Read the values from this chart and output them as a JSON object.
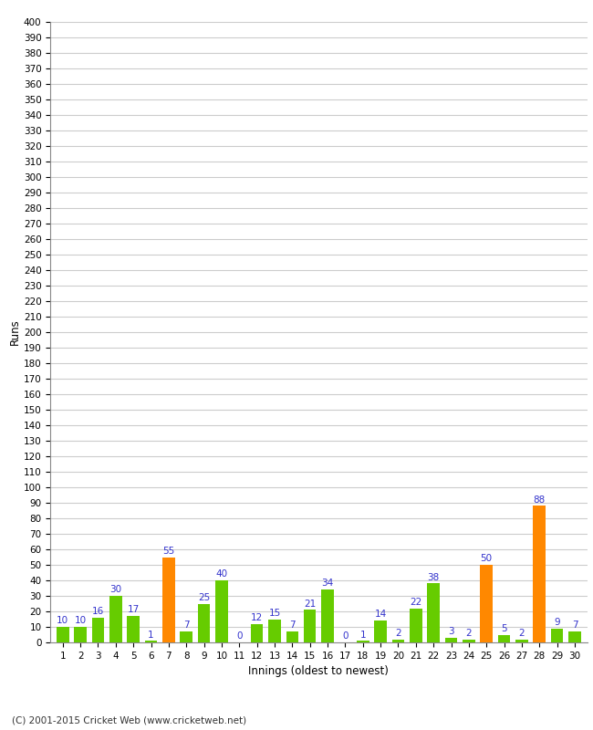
{
  "title": "",
  "xlabel": "Innings (oldest to newest)",
  "ylabel": "Runs",
  "values": [
    10,
    10,
    16,
    30,
    17,
    1,
    55,
    7,
    25,
    40,
    0,
    12,
    15,
    7,
    21,
    34,
    0,
    1,
    14,
    2,
    22,
    38,
    3,
    2,
    50,
    5,
    2,
    88,
    9,
    7
  ],
  "colors": [
    "#66cc00",
    "#66cc00",
    "#66cc00",
    "#66cc00",
    "#66cc00",
    "#66cc00",
    "#ff8800",
    "#66cc00",
    "#66cc00",
    "#66cc00",
    "#66cc00",
    "#66cc00",
    "#66cc00",
    "#66cc00",
    "#66cc00",
    "#66cc00",
    "#66cc00",
    "#66cc00",
    "#66cc00",
    "#66cc00",
    "#66cc00",
    "#66cc00",
    "#66cc00",
    "#66cc00",
    "#ff8800",
    "#66cc00",
    "#66cc00",
    "#ff8800",
    "#66cc00",
    "#66cc00"
  ],
  "labels": [
    1,
    2,
    3,
    4,
    5,
    6,
    7,
    8,
    9,
    10,
    11,
    12,
    13,
    14,
    15,
    16,
    17,
    18,
    19,
    20,
    21,
    22,
    23,
    24,
    25,
    26,
    27,
    28,
    29,
    30
  ],
  "ylim": [
    0,
    400
  ],
  "yticks": [
    0,
    10,
    20,
    30,
    40,
    50,
    60,
    70,
    80,
    90,
    100,
    110,
    120,
    130,
    140,
    150,
    160,
    170,
    180,
    190,
    200,
    210,
    220,
    230,
    240,
    250,
    260,
    270,
    280,
    290,
    300,
    310,
    320,
    330,
    340,
    350,
    360,
    370,
    380,
    390,
    400
  ],
  "footer": "(C) 2001-2015 Cricket Web (www.cricketweb.net)",
  "background_color": "#ffffff",
  "grid_color": "#cccccc",
  "label_color": "#3333cc",
  "bar_label_fontsize": 7.5,
  "bar_width": 0.7
}
